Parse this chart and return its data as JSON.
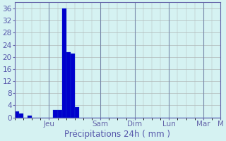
{
  "bar_values": [
    2.0,
    1.2,
    0.0,
    0.6,
    0.0,
    0.0,
    0.0,
    0.0,
    0.0,
    2.5,
    2.5,
    36.0,
    21.5,
    21.0,
    3.5,
    0.0,
    0.0,
    0.0,
    0.0,
    0.0,
    0.0,
    0.0,
    0.0,
    0.0,
    0.0,
    0.0,
    0.0,
    0.0,
    0.0,
    0.0,
    0.0,
    0.0,
    0.0,
    0.0,
    0.0,
    0.0,
    0.0,
    0.0,
    0.0,
    0.0,
    0.0,
    0.0,
    0.0,
    0.0,
    0.0,
    0.0,
    0.0,
    0.0
  ],
  "n_bars": 48,
  "day_labels": [
    "Jeu",
    "Sam",
    "Dim",
    "Lun",
    "Mar",
    "M"
  ],
  "day_tick_positions": [
    8,
    20,
    28,
    36,
    44,
    48
  ],
  "xlabel": "Précipitations 24h ( mm )",
  "ylim": [
    0,
    38
  ],
  "yticks": [
    0,
    4,
    8,
    12,
    16,
    20,
    24,
    28,
    32,
    36
  ],
  "bar_color": "#0000cc",
  "bar_edge_color": "#1144cc",
  "background_color": "#d5f2f2",
  "grid_color": "#b0b8b8",
  "axis_color": "#6666aa",
  "tick_color": "#5555aa",
  "label_color": "#5555aa",
  "xlabel_fontsize": 8.5,
  "tick_fontsize": 7.5
}
